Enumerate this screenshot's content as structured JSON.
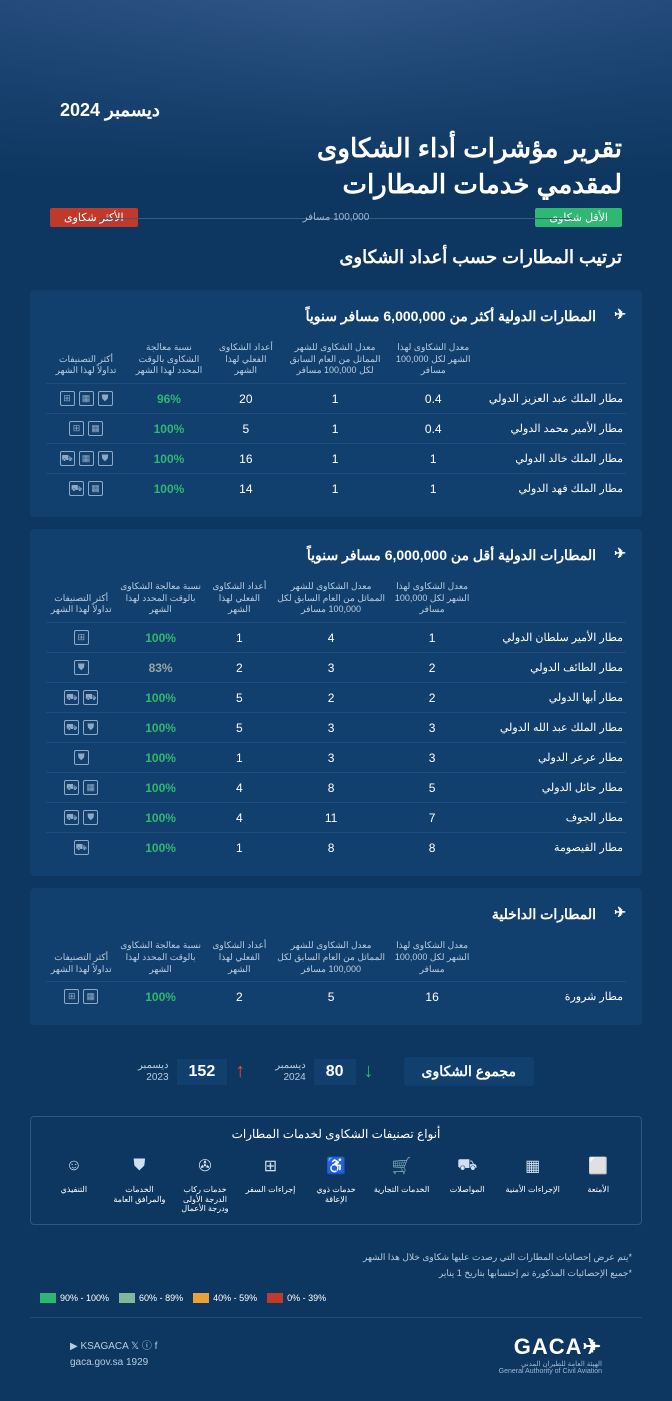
{
  "date": "ديسمبر 2024",
  "title_l1": "تقرير مؤشرات أداء الشكاوى",
  "title_l2": "لمقدمي خدمات المطارات",
  "legend": {
    "least": "الأقل شكاوى",
    "most": "الأكثر شكاوى",
    "mid": "100,000 مسافر"
  },
  "ranking_title": "ترتيب المطارات حسب أعداد الشكاوى",
  "columns": {
    "airport": "",
    "rate_current": "معدل الشكاوى لهذا الشهر لكل 100,000 مسافر",
    "rate_prev": "معدل الشكاوى للشهر المماثل من العام السابق لكل 100,000 مسافر",
    "count": "أعداد الشكاوى الفعلي لهذا الشهر",
    "pct": "نسبة معالجة الشكاوى بالوقت المحدد لهذا الشهر",
    "top_cat": "أكثر التصنيفات تداولاً لهذا الشهر"
  },
  "section1": {
    "title": "المطارات الدولية أكثر من 6,000,000 مسافر سنوياً",
    "rows": [
      {
        "name": "مطار الملك عبد العزيز الدولي",
        "c": "0.4",
        "p": "1",
        "n": "20",
        "pct": "96%",
        "pct_color": "green",
        "icons": [
          "⛊",
          "▦",
          "⊞"
        ]
      },
      {
        "name": "مطار الأمير محمد الدولي",
        "c": "0.4",
        "p": "1",
        "n": "5",
        "pct": "100%",
        "pct_color": "green",
        "icons": [
          "▦",
          "⊞"
        ]
      },
      {
        "name": "مطار الملك خالد الدولي",
        "c": "1",
        "p": "1",
        "n": "16",
        "pct": "100%",
        "pct_color": "green",
        "icons": [
          "⛊",
          "▦",
          "⛟"
        ]
      },
      {
        "name": "مطار الملك فهد الدولي",
        "c": "1",
        "p": "1",
        "n": "14",
        "pct": "100%",
        "pct_color": "green",
        "icons": [
          "▦",
          "⛟"
        ]
      }
    ]
  },
  "section2": {
    "title": "المطارات الدولية أقل من 6,000,000 مسافر سنوياً",
    "rows": [
      {
        "name": "مطار الأمير سلطان الدولي",
        "c": "1",
        "p": "4",
        "n": "1",
        "pct": "100%",
        "pct_color": "green",
        "icons": [
          "⊞"
        ]
      },
      {
        "name": "مطار الطائف الدولي",
        "c": "2",
        "p": "3",
        "n": "2",
        "pct": "83%",
        "pct_color": "gray",
        "icons": [
          "⛊"
        ]
      },
      {
        "name": "مطار أبها الدولي",
        "c": "2",
        "p": "2",
        "n": "5",
        "pct": "100%",
        "pct_color": "green",
        "icons": [
          "⛟",
          "⛟"
        ]
      },
      {
        "name": "مطار الملك عبد الله الدولي",
        "c": "3",
        "p": "3",
        "n": "5",
        "pct": "100%",
        "pct_color": "green",
        "icons": [
          "⛊",
          "⛟"
        ]
      },
      {
        "name": "مطار عرعر الدولي",
        "c": "3",
        "p": "3",
        "n": "1",
        "pct": "100%",
        "pct_color": "green",
        "icons": [
          "⛊"
        ]
      },
      {
        "name": "مطار حائل الدولي",
        "c": "5",
        "p": "8",
        "n": "4",
        "pct": "100%",
        "pct_color": "green",
        "icons": [
          "▦",
          "⛟"
        ]
      },
      {
        "name": "مطار الجوف",
        "c": "7",
        "p": "11",
        "n": "4",
        "pct": "100%",
        "pct_color": "green",
        "icons": [
          "⛊",
          "⛟"
        ]
      },
      {
        "name": "مطار القيصومة",
        "c": "8",
        "p": "8",
        "n": "1",
        "pct": "100%",
        "pct_color": "green",
        "icons": [
          "⛟"
        ]
      }
    ]
  },
  "section3": {
    "title": "المطارات الداخلية",
    "rows": [
      {
        "name": "مطار شرورة",
        "c": "16",
        "p": "5",
        "n": "2",
        "pct": "100%",
        "pct_color": "green",
        "icons": [
          "▦",
          "⊞"
        ]
      }
    ]
  },
  "totals": {
    "label": "مجموع الشكاوى",
    "current": {
      "num": "80",
      "date_l1": "ديسمبر",
      "date_l2": "2024"
    },
    "prev": {
      "num": "152",
      "date_l1": "ديسمبر",
      "date_l2": "2023"
    }
  },
  "categories": {
    "title": "أنواع تصنيفات الشكاوى لخدمات المطارات",
    "items": [
      {
        "icon": "⬜",
        "label": "الأمتعة"
      },
      {
        "icon": "▦",
        "label": "الإجراءات الأمنية"
      },
      {
        "icon": "⛟",
        "label": "المواصلات"
      },
      {
        "icon": "🛒",
        "label": "الخدمات التجارية"
      },
      {
        "icon": "♿",
        "label": "خدمات ذوي الإعاقة"
      },
      {
        "icon": "⊞",
        "label": "إجراءات السفر"
      },
      {
        "icon": "✇",
        "label": "خدمات ركاب الدرجة الأولى ودرجة الأعمال"
      },
      {
        "icon": "⛊",
        "label": "الخدمات والمرافق العامة"
      },
      {
        "icon": "☺",
        "label": "التنفيذي"
      }
    ]
  },
  "notes": {
    "n1": "*يتم عرض إحصائيات المطارات  التي رصدت عليها شكاوى خلال هذا الشهر",
    "n2": "*جميع الإحصائيات المذكورة تم إحتسابها بتاريخ 1 يناير"
  },
  "color_legend": [
    {
      "label": "39% - 0%",
      "color": "#c0392b"
    },
    {
      "label": "59% - 40%",
      "color": "#e8a23a"
    },
    {
      "label": "89% - 60%",
      "color": "#7fb89a"
    },
    {
      "label": "100% - 90%",
      "color": "#2eb872"
    }
  ],
  "footer": {
    "logo": "GACA",
    "logo_sub_ar": "الهيئة العامة للطيران المدني",
    "logo_sub_en": "General Authority of Civil Aviation",
    "social": "KSAGACA 𝕏 ⓘ f ▶",
    "site": "gaca.gov.sa 1929"
  }
}
